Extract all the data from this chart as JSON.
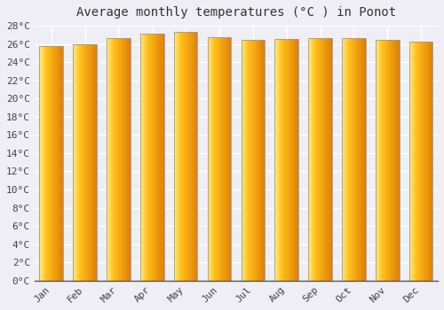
{
  "title": "Average monthly temperatures (°C ) in Ponot",
  "months": [
    "Jan",
    "Feb",
    "Mar",
    "Apr",
    "May",
    "Jun",
    "Jul",
    "Aug",
    "Sep",
    "Oct",
    "Nov",
    "Dec"
  ],
  "values": [
    25.8,
    26.0,
    26.6,
    27.1,
    27.3,
    26.7,
    26.4,
    26.5,
    26.6,
    26.6,
    26.4,
    26.3
  ],
  "bar_color_left": "#FFD966",
  "bar_color_mid": "#FFAA00",
  "bar_color_right": "#F08000",
  "bar_edge_color": "#999999",
  "ylim": [
    0,
    28
  ],
  "ytick_step": 2,
  "bg_color": "#EEEEF4",
  "plot_bg_color": "#EEEEF4",
  "grid_color": "#FFFFFF",
  "title_fontsize": 10,
  "tick_fontsize": 8,
  "bar_width": 0.7
}
